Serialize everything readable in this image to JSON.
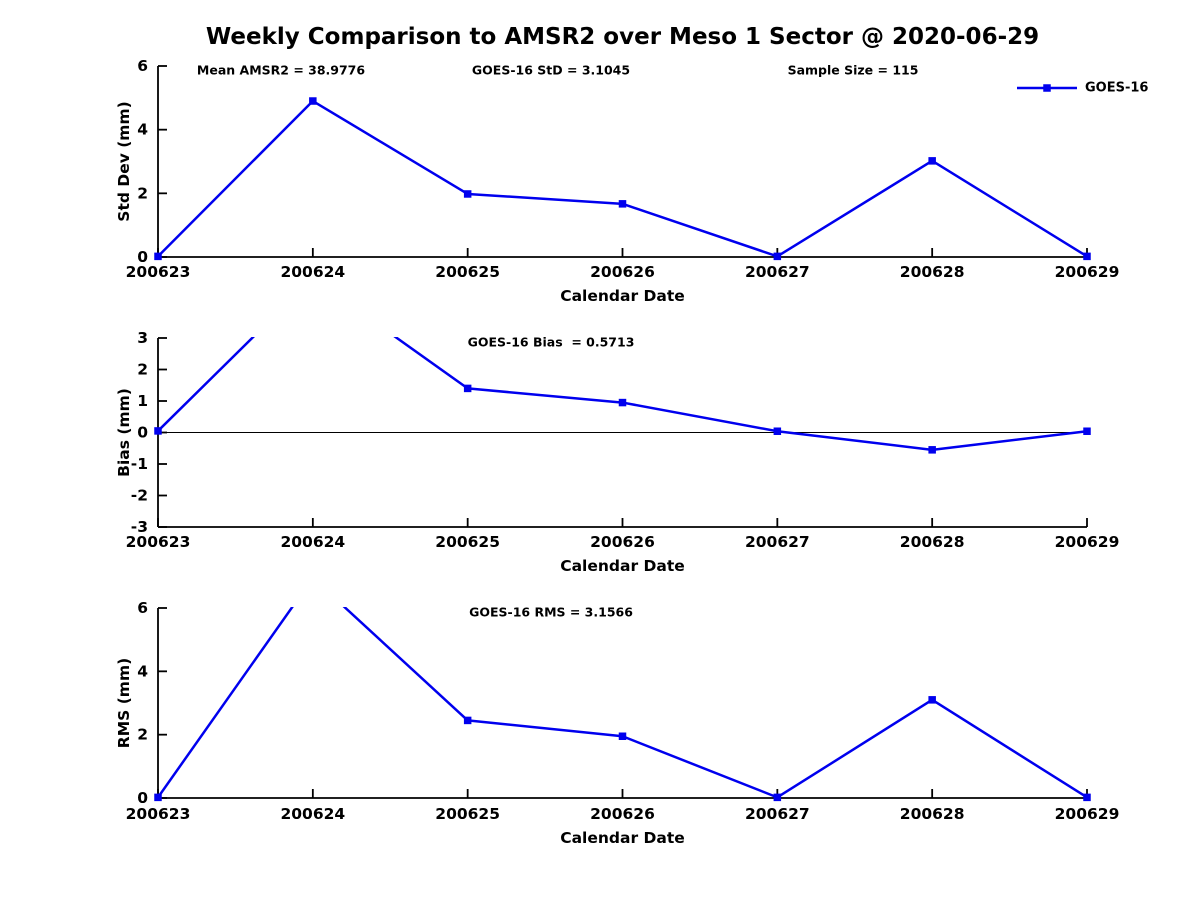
{
  "title": "Weekly Comparison to AMSR2 over Meso 1 Sector @ 2020-06-29",
  "accent_color": "#0000EE",
  "axis_color": "#000000",
  "chart_data": [
    {
      "id": "stddev",
      "type": "line",
      "categories": [
        "200623",
        "200624",
        "200625",
        "200626",
        "200627",
        "200628",
        "200629"
      ],
      "series": [
        {
          "name": "GOES-16",
          "color": "#0000EE",
          "marker": "square",
          "values": [
            0.02,
            4.9,
            1.98,
            1.67,
            0.02,
            3.02,
            0.02
          ]
        }
      ],
      "xlabel": "Calendar Date",
      "ylabel": "Std Dev (mm)",
      "ylim": [
        0,
        6
      ],
      "yticks": [
        "0",
        "2",
        "4",
        "6"
      ],
      "ytick_values": [
        0,
        2,
        4,
        6
      ],
      "grid": false,
      "zero_line": false,
      "annotations": [
        {
          "text": "Mean AMSR2 = 38.9776"
        },
        {
          "text": "GOES-16 StD = 3.1045"
        },
        {
          "text": "Sample Size = 115"
        }
      ],
      "legend": {
        "label": "GOES-16",
        "position": "top-right"
      }
    },
    {
      "id": "bias",
      "type": "line",
      "categories": [
        "200623",
        "200624",
        "200625",
        "200626",
        "200627",
        "200628",
        "200629"
      ],
      "series": [
        {
          "name": "GOES-16",
          "color": "#0000EE",
          "marker": "square",
          "values": [
            0.05,
            4.9,
            1.4,
            0.95,
            0.04,
            -0.55,
            0.04
          ]
        }
      ],
      "xlabel": "Calendar Date",
      "ylabel": "Bias (mm)",
      "ylim": [
        -3,
        3
      ],
      "yticks": [
        "-3",
        "-2",
        "-1",
        "0",
        "1",
        "2",
        "3"
      ],
      "ytick_values": [
        -3,
        -2,
        -1,
        0,
        1,
        2,
        3
      ],
      "grid": false,
      "zero_line": true,
      "annotations": [
        {
          "text": "GOES-16 Bias  = 0.5713"
        }
      ],
      "legend": null
    },
    {
      "id": "rms",
      "type": "line",
      "categories": [
        "200623",
        "200624",
        "200625",
        "200626",
        "200627",
        "200628",
        "200629"
      ],
      "series": [
        {
          "name": "GOES-16",
          "color": "#0000EE",
          "marker": "square",
          "values": [
            0.02,
            6.95,
            2.45,
            1.95,
            0.02,
            3.1,
            0.02
          ]
        }
      ],
      "xlabel": "Calendar Date",
      "ylabel": "RMS (mm)",
      "ylim": [
        0,
        6
      ],
      "yticks": [
        "0",
        "2",
        "4",
        "6"
      ],
      "ytick_values": [
        0,
        2,
        4,
        6
      ],
      "grid": false,
      "zero_line": false,
      "annotations": [
        {
          "text": "GOES-16 RMS = 3.1566"
        }
      ],
      "legend": null
    }
  ]
}
